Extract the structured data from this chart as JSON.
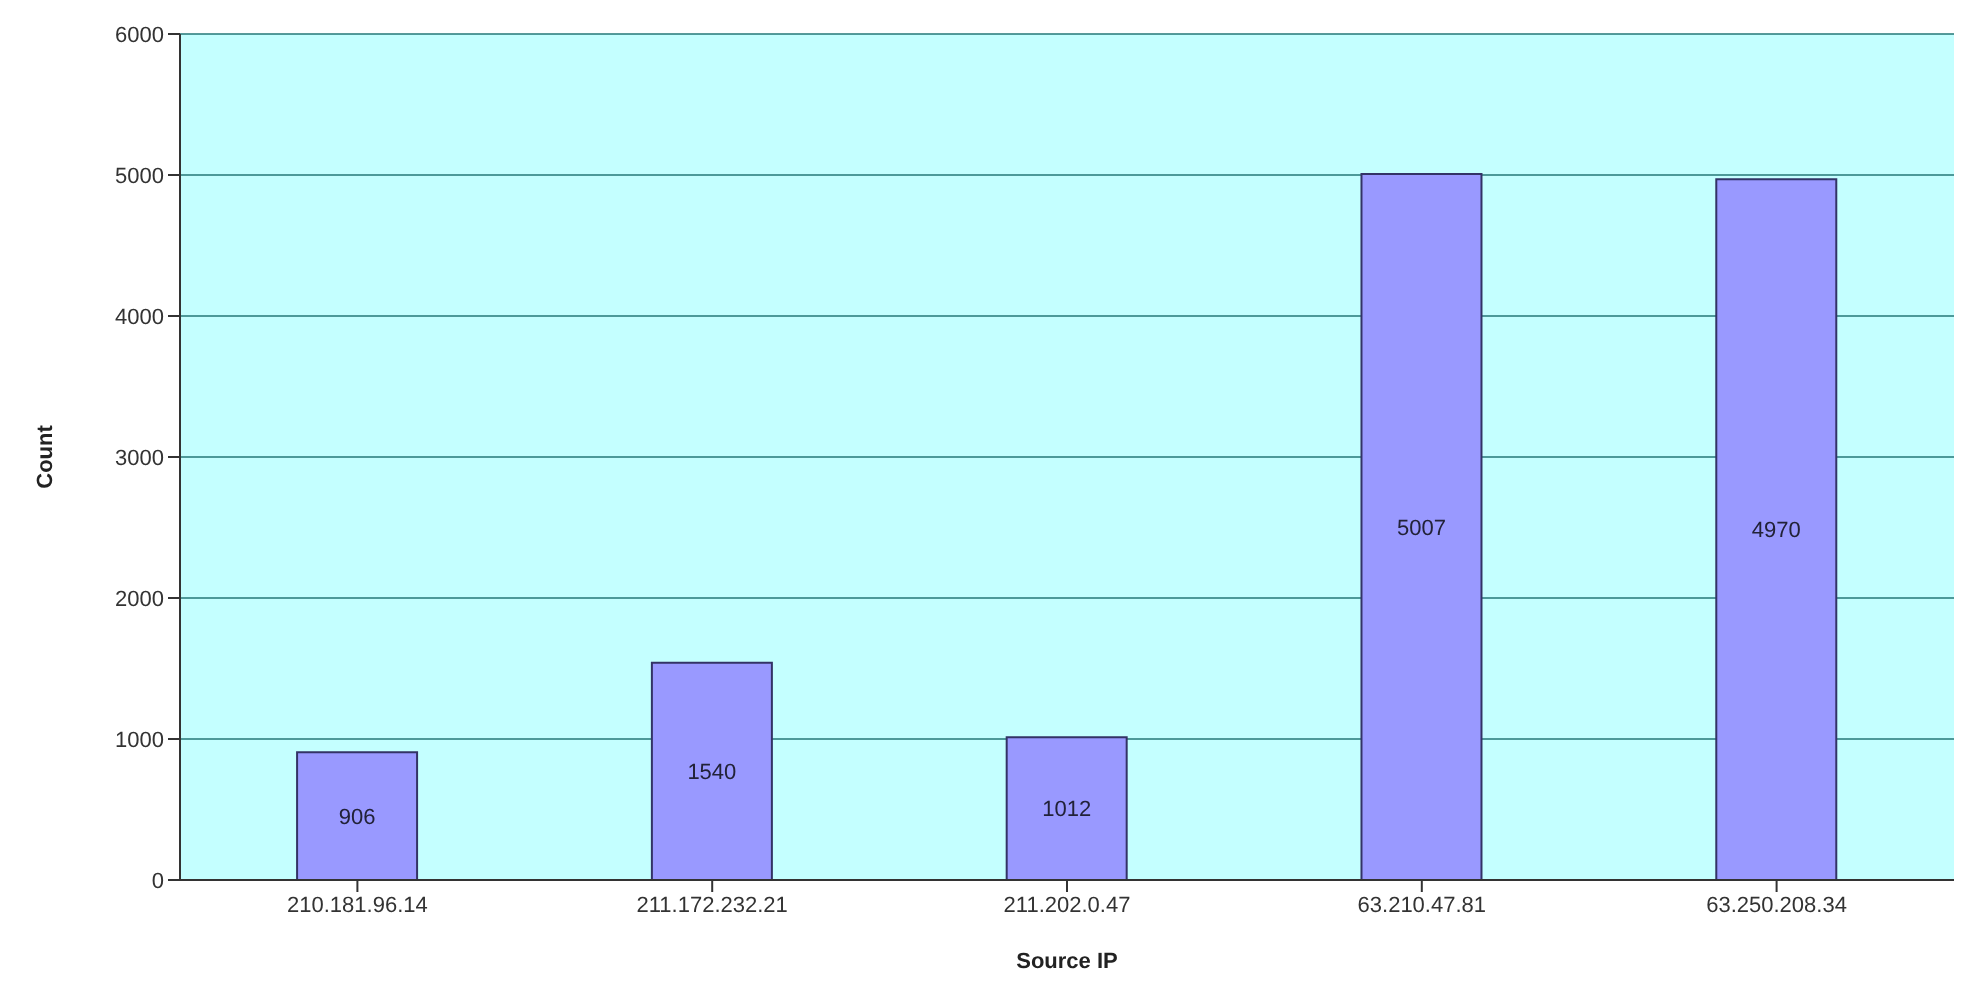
{
  "chart_data": {
    "type": "bar",
    "xlabel": "Source IP",
    "ylabel": "Count",
    "categories": [
      "210.181.96.14",
      "211.172.232.21",
      "211.202.0.47",
      "63.210.47.81",
      "63.250.208.34"
    ],
    "values": [
      906,
      1540,
      1012,
      5007,
      4970
    ],
    "color": "#9999ff",
    "ylim": [
      0,
      6000
    ],
    "yticks": [
      0,
      1000,
      2000,
      3000,
      4000,
      5000,
      6000
    ],
    "grid": "y",
    "data_labels": true
  }
}
